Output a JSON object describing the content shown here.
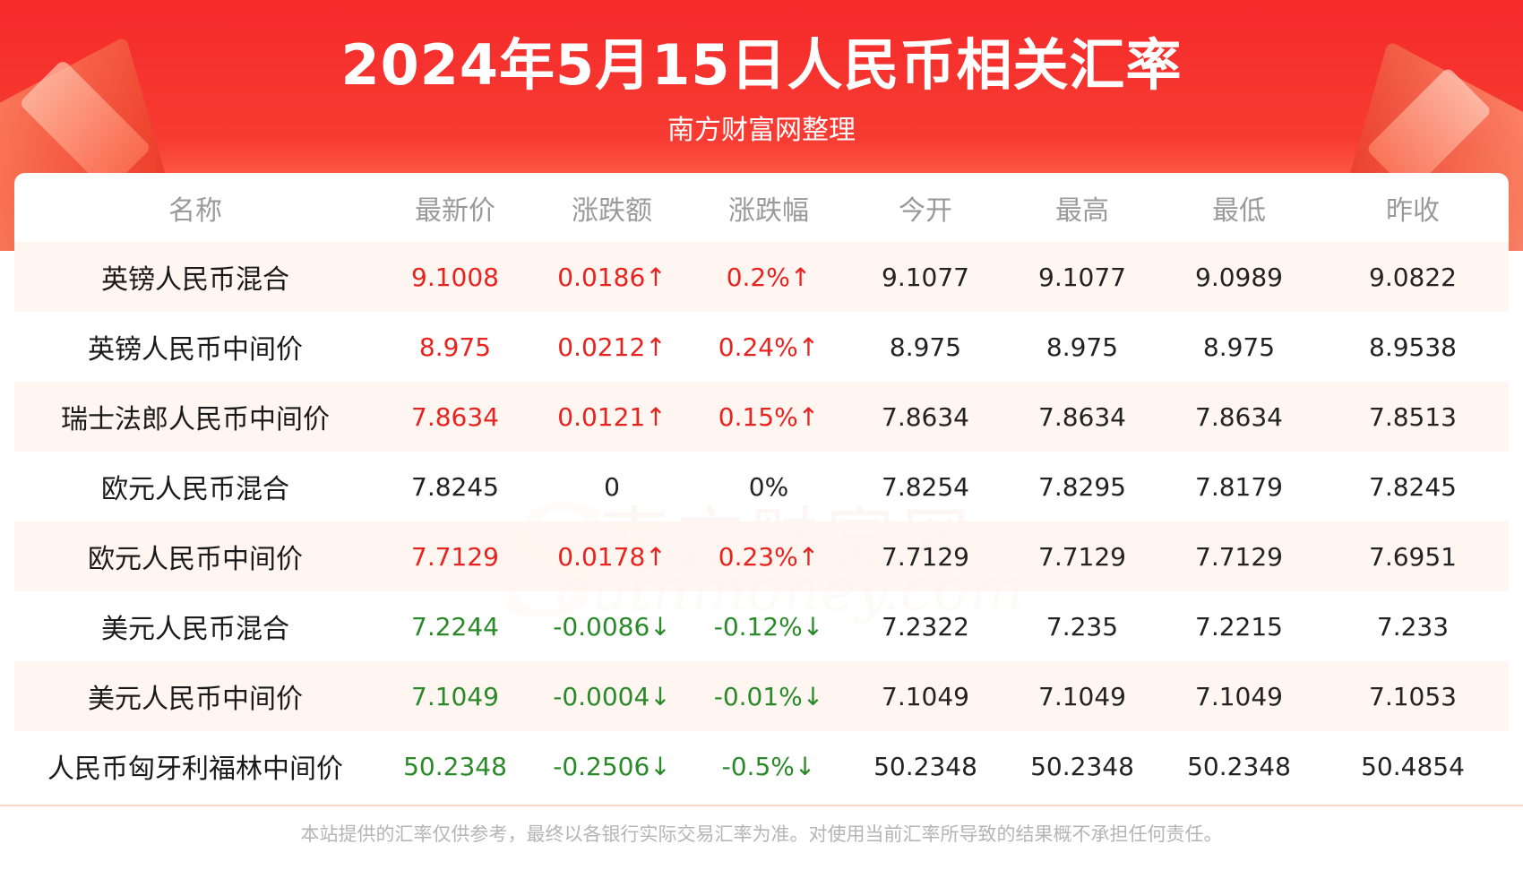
{
  "header": {
    "title": "2024年5月15日人民币相关汇率",
    "subtitle": "南方财富网整理"
  },
  "watermark": {
    "cn": "南方财富网",
    "en": "outhmoney.com",
    "s": "S"
  },
  "table": {
    "columns": [
      "名称",
      "最新价",
      "涨跌额",
      "涨跌幅",
      "今开",
      "最高",
      "最低",
      "昨收"
    ],
    "rows": [
      {
        "name": "英镑人民币混合",
        "latest": "9.1008",
        "change": "0.0186↑",
        "pct": "0.2%↑",
        "open": "9.1077",
        "high": "9.1077",
        "low": "9.0989",
        "prev": "9.0822",
        "trend": "up"
      },
      {
        "name": "英镑人民币中间价",
        "latest": "8.975",
        "change": "0.0212↑",
        "pct": "0.24%↑",
        "open": "8.975",
        "high": "8.975",
        "low": "8.975",
        "prev": "8.9538",
        "trend": "up"
      },
      {
        "name": "瑞士法郎人民币中间价",
        "latest": "7.8634",
        "change": "0.0121↑",
        "pct": "0.15%↑",
        "open": "7.8634",
        "high": "7.8634",
        "low": "7.8634",
        "prev": "7.8513",
        "trend": "up"
      },
      {
        "name": "欧元人民币混合",
        "latest": "7.8245",
        "change": "0",
        "pct": "0%",
        "open": "7.8254",
        "high": "7.8295",
        "low": "7.8179",
        "prev": "7.8245",
        "trend": "flat"
      },
      {
        "name": "欧元人民币中间价",
        "latest": "7.7129",
        "change": "0.0178↑",
        "pct": "0.23%↑",
        "open": "7.7129",
        "high": "7.7129",
        "low": "7.7129",
        "prev": "7.6951",
        "trend": "up"
      },
      {
        "name": "美元人民币混合",
        "latest": "7.2244",
        "change": "-0.0086↓",
        "pct": "-0.12%↓",
        "open": "7.2322",
        "high": "7.235",
        "low": "7.2215",
        "prev": "7.233",
        "trend": "down"
      },
      {
        "name": "美元人民币中间价",
        "latest": "7.1049",
        "change": "-0.0004↓",
        "pct": "-0.01%↓",
        "open": "7.1049",
        "high": "7.1049",
        "low": "7.1049",
        "prev": "7.1053",
        "trend": "down"
      },
      {
        "name": "人民币匈牙利福林中间价",
        "latest": "50.2348",
        "change": "-0.2506↓",
        "pct": "-0.5%↓",
        "open": "50.2348",
        "high": "50.2348",
        "low": "50.2348",
        "prev": "50.4854",
        "trend": "down"
      }
    ]
  },
  "footer": {
    "disclaimer": "本站提供的汇率仅供参考，最终以各银行实际交易汇率为准。对使用当前汇率所导致的结果概不承担任何责任。"
  },
  "colors": {
    "up": "#e8231f",
    "down": "#2a8a2a",
    "banner": "#f52a2a"
  }
}
